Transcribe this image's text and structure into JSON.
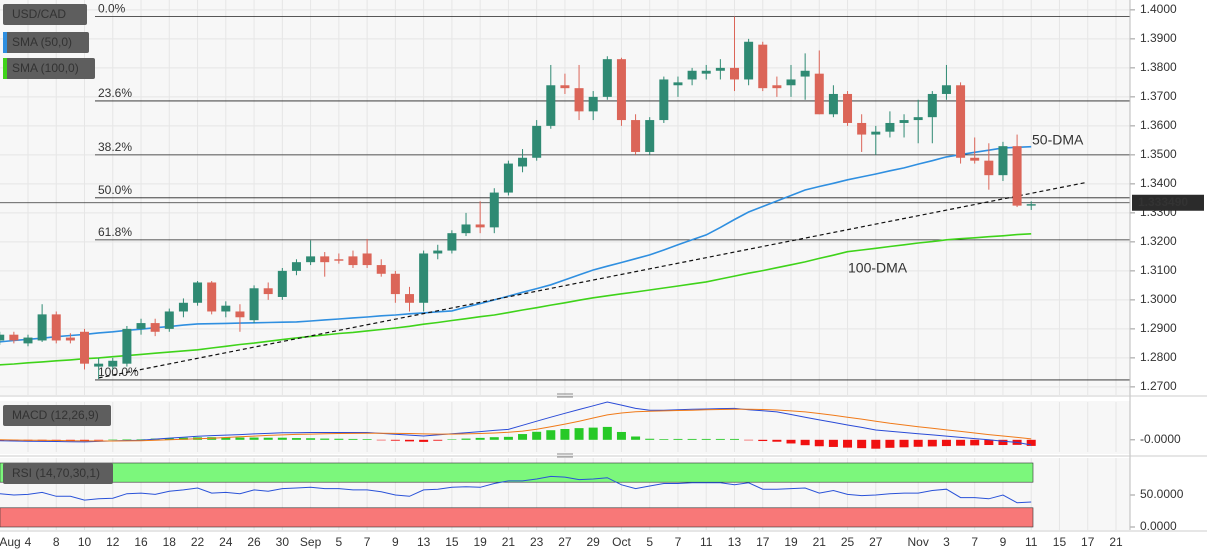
{
  "chart_data": [
    {
      "type": "candlestick",
      "title": "USD/CAD",
      "up_color": "#2f8a73",
      "down_color": "#db6558",
      "x_labels": [
        "Aug",
        "4",
        "8",
        "10",
        "12",
        "16",
        "18",
        "22",
        "24",
        "26",
        "30",
        "Sep",
        "5",
        "7",
        "9",
        "13",
        "15",
        "19",
        "21",
        "23",
        "27",
        "29",
        "Oct",
        "5",
        "7",
        "11",
        "13",
        "17",
        "19",
        "21",
        "25",
        "27",
        "Nov",
        "3",
        "7",
        "9",
        "11",
        "15",
        "17",
        "21"
      ],
      "candles": [
        [
          1.286,
          1.289,
          1.2845,
          1.288
        ],
        [
          1.288,
          1.289,
          1.285,
          1.286
        ],
        [
          1.285,
          1.288,
          1.284,
          1.287
        ],
        [
          1.286,
          1.2985,
          1.2855,
          1.295
        ],
        [
          1.295,
          1.296,
          1.285,
          1.286
        ],
        [
          1.287,
          1.2885,
          1.285,
          1.286
        ],
        [
          1.289,
          1.29,
          1.276,
          1.278
        ],
        [
          1.277,
          1.28,
          1.2727,
          1.278
        ],
        [
          1.277,
          1.28,
          1.276,
          1.279
        ],
        [
          1.278,
          1.291,
          1.277,
          1.29
        ],
        [
          1.29,
          1.2935,
          1.288,
          1.292
        ],
        [
          1.292,
          1.2935,
          1.2875,
          1.289
        ],
        [
          1.29,
          1.297,
          1.289,
          1.296
        ],
        [
          1.296,
          1.3005,
          1.294,
          1.299
        ],
        [
          1.299,
          1.3065,
          1.298,
          1.306
        ],
        [
          1.306,
          1.3065,
          1.295,
          1.296
        ],
        [
          1.296,
          1.2995,
          1.294,
          1.298
        ],
        [
          1.296,
          1.2985,
          1.289,
          1.294
        ],
        [
          1.293,
          1.305,
          1.292,
          1.304
        ],
        [
          1.304,
          1.306,
          1.3,
          1.302
        ],
        [
          1.301,
          1.311,
          1.3,
          1.31
        ],
        [
          1.31,
          1.314,
          1.3085,
          1.313
        ],
        [
          1.313,
          1.3205,
          1.312,
          1.315
        ],
        [
          1.315,
          1.3165,
          1.308,
          1.313
        ],
        [
          1.314,
          1.316,
          1.3125,
          1.3135
        ],
        [
          1.315,
          1.317,
          1.311,
          1.312
        ],
        [
          1.316,
          1.321,
          1.311,
          1.312
        ],
        [
          1.312,
          1.314,
          1.308,
          1.309
        ],
        [
          1.309,
          1.31,
          1.299,
          1.302
        ],
        [
          1.302,
          1.3045,
          1.296,
          1.299
        ],
        [
          1.299,
          1.317,
          1.296,
          1.316
        ],
        [
          1.316,
          1.319,
          1.314,
          1.317
        ],
        [
          1.317,
          1.324,
          1.316,
          1.323
        ],
        [
          1.323,
          1.33,
          1.322,
          1.326
        ],
        [
          1.326,
          1.334,
          1.323,
          1.325
        ],
        [
          1.325,
          1.3385,
          1.323,
          1.337
        ],
        [
          1.337,
          1.348,
          1.336,
          1.347
        ],
        [
          1.346,
          1.352,
          1.344,
          1.349
        ],
        [
          1.349,
          1.362,
          1.348,
          1.36
        ],
        [
          1.36,
          1.381,
          1.359,
          1.374
        ],
        [
          1.374,
          1.378,
          1.371,
          1.373
        ],
        [
          1.373,
          1.381,
          1.362,
          1.365
        ],
        [
          1.365,
          1.372,
          1.362,
          1.37
        ],
        [
          1.37,
          1.384,
          1.369,
          1.383
        ],
        [
          1.383,
          1.3835,
          1.36,
          1.362
        ],
        [
          1.362,
          1.364,
          1.35,
          1.351
        ],
        [
          1.351,
          1.363,
          1.35,
          1.362
        ],
        [
          1.362,
          1.377,
          1.361,
          1.376
        ],
        [
          1.374,
          1.377,
          1.37,
          1.375
        ],
        [
          1.376,
          1.38,
          1.374,
          1.379
        ],
        [
          1.378,
          1.381,
          1.376,
          1.379
        ],
        [
          1.379,
          1.383,
          1.376,
          1.38
        ],
        [
          1.38,
          1.3977,
          1.372,
          1.376
        ],
        [
          1.376,
          1.39,
          1.374,
          1.389
        ],
        [
          1.388,
          1.389,
          1.372,
          1.373
        ],
        [
          1.374,
          1.377,
          1.37,
          1.373
        ],
        [
          1.374,
          1.381,
          1.37,
          1.376
        ],
        [
          1.377,
          1.385,
          1.369,
          1.379
        ],
        [
          1.378,
          1.386,
          1.364,
          1.364
        ],
        [
          1.364,
          1.374,
          1.363,
          1.371
        ],
        [
          1.371,
          1.372,
          1.36,
          1.361
        ],
        [
          1.361,
          1.364,
          1.351,
          1.357
        ],
        [
          1.357,
          1.36,
          1.35,
          1.358
        ],
        [
          1.358,
          1.365,
          1.356,
          1.361
        ],
        [
          1.361,
          1.364,
          1.356,
          1.362
        ],
        [
          1.362,
          1.369,
          1.354,
          1.363
        ],
        [
          1.363,
          1.372,
          1.354,
          1.371
        ],
        [
          1.371,
          1.381,
          1.369,
          1.374
        ],
        [
          1.374,
          1.375,
          1.347,
          1.349
        ],
        [
          1.349,
          1.356,
          1.347,
          1.348
        ],
        [
          1.348,
          1.354,
          1.338,
          1.343
        ],
        [
          1.343,
          1.3545,
          1.341,
          1.353
        ],
        [
          1.353,
          1.357,
          1.332,
          1.3325
        ],
        [
          1.3325,
          1.334,
          1.331,
          1.333
        ]
      ],
      "series": [
        {
          "name": "SMA (50,0)",
          "annotation": "50-DMA",
          "color": "#2f8fe0",
          "values": [
            1.2855,
            1.286,
            1.2864,
            1.2868,
            1.2873,
            1.2877,
            1.2881,
            1.2886,
            1.289,
            1.2895,
            1.2899,
            1.2904,
            1.2908,
            1.2913,
            1.2917,
            1.2918,
            1.2919,
            1.292,
            1.2921,
            1.2922,
            1.2923,
            1.2924,
            1.2927,
            1.2931,
            1.2934,
            1.2938,
            1.2941,
            1.2945,
            1.2948,
            1.2952,
            1.2955,
            1.2959,
            1.2962,
            1.2975,
            1.2987,
            1.3,
            1.3013,
            1.3026,
            1.3039,
            1.3052,
            1.3069,
            1.3086,
            1.3103,
            1.3116,
            1.3129,
            1.3142,
            1.3155,
            1.3172,
            1.319,
            1.3207,
            1.3224,
            1.325,
            1.3277,
            1.3303,
            1.3322,
            1.3341,
            1.336,
            1.3379,
            1.3391,
            1.3402,
            1.3414,
            1.3424,
            1.3434,
            1.3445,
            1.3455,
            1.3468,
            1.348,
            1.3493,
            1.3501,
            1.3509,
            1.3516,
            1.3524,
            1.3526,
            1.3528
          ]
        },
        {
          "name": "SMA (100,0)",
          "annotation": "100-DMA",
          "color": "#3fd31a",
          "values": [
            1.2776,
            1.2779,
            1.2783,
            1.2786,
            1.279,
            1.2793,
            1.2797,
            1.28,
            1.2804,
            1.2808,
            1.2812,
            1.2816,
            1.282,
            1.2824,
            1.2828,
            1.2834,
            1.284,
            1.2846,
            1.2851,
            1.2857,
            1.2863,
            1.2869,
            1.2874,
            1.2879,
            1.2884,
            1.2888,
            1.2893,
            1.2898,
            1.2903,
            1.2909,
            1.2916,
            1.2922,
            1.2929,
            1.2935,
            1.2942,
            1.2948,
            1.2956,
            1.2965,
            1.2973,
            1.2982,
            1.299,
            1.2999,
            1.3007,
            1.3014,
            1.3021,
            1.3027,
            1.3034,
            1.3041,
            1.3048,
            1.3055,
            1.3062,
            1.3072,
            1.3082,
            1.3092,
            1.3101,
            1.3111,
            1.3121,
            1.3131,
            1.3143,
            1.3154,
            1.3166,
            1.3172,
            1.3178,
            1.3184,
            1.319,
            1.3196,
            1.3201,
            1.3207,
            1.3211,
            1.3214,
            1.3218,
            1.3221,
            1.3225,
            1.3228
          ]
        }
      ],
      "fib_levels": [
        {
          "label": "0.0%",
          "value": 1.3977
        },
        {
          "label": "23.6%",
          "value": 1.3686
        },
        {
          "label": "38.2%",
          "value": 1.35
        },
        {
          "label": "50.0%",
          "value": 1.3352
        },
        {
          "label": "61.8%",
          "value": 1.3207
        },
        {
          "label": "100.0%",
          "value": 1.2724
        }
      ],
      "trendline": {
        "values": [
          1.2731,
          1.3404
        ],
        "color": "#111111",
        "dashed": true
      },
      "last_price": {
        "value": 1.33349,
        "label": "1.333490"
      },
      "ylim": [
        1.2672,
        1.4034
      ],
      "yticks": [
        {
          "value": 1.4,
          "label": "1.4000"
        },
        {
          "value": 1.39,
          "label": "1.3900"
        },
        {
          "value": 1.38,
          "label": "1.3800"
        },
        {
          "value": 1.37,
          "label": "1.3700"
        },
        {
          "value": 1.36,
          "label": "1.3600"
        },
        {
          "value": 1.35,
          "label": "1.3500"
        },
        {
          "value": 1.34,
          "label": "1.3400"
        },
        {
          "value": 1.33,
          "label": "1.3300"
        },
        {
          "value": 1.32,
          "label": "1.3200"
        },
        {
          "value": 1.31,
          "label": "1.3100"
        },
        {
          "value": 1.3,
          "label": "1.3000"
        },
        {
          "value": 1.29,
          "label": "1.2900"
        },
        {
          "value": 1.28,
          "label": "1.2800"
        },
        {
          "value": 1.27,
          "label": "1.2700"
        }
      ],
      "grid": true
    },
    {
      "type": "macd",
      "title": "MACD (12,26,9)",
      "series": [
        {
          "color": "#2a4bd7",
          "values": [
            -0.0005,
            -0.0007,
            -0.0008,
            -0.0009,
            -0.001,
            -0.0011,
            -0.0012,
            -0.0009,
            -0.0006,
            -0.0004,
            -0.0002,
            0.0004,
            0.001,
            0.0015,
            0.002,
            0.0024,
            0.0027,
            0.003,
            0.0034,
            0.0037,
            0.004,
            0.0041,
            0.0042,
            0.0042,
            0.0042,
            0.0042,
            0.0042,
            0.0037,
            0.0032,
            0.0027,
            0.0022,
            0.0028,
            0.0035,
            0.0041,
            0.0047,
            0.0054,
            0.006,
            0.0083,
            0.0107,
            0.013,
            0.0152,
            0.0174,
            0.0195,
            0.0217,
            0.0199,
            0.018,
            0.017,
            0.017,
            0.0173,
            0.0175,
            0.0177,
            0.0179,
            0.018,
            0.0173,
            0.0167,
            0.016,
            0.0145,
            0.0129,
            0.0114,
            0.01,
            0.0085,
            0.0071,
            0.0056,
            0.0049,
            0.0042,
            0.0035,
            0.0028,
            0.0021,
            0.0014,
            0.0007,
            0,
            -0.0008,
            -0.0015,
            -0.003
          ]
        },
        {
          "color": "#f07a19",
          "values": [
            0,
            -0.0001,
            -0.0002,
            -0.0003,
            -0.0004,
            -0.0005,
            -0.0006,
            -0.0007,
            -0.0007,
            -0.0006,
            -0.0005,
            -0.0003,
            0,
            0.0003,
            0.0006,
            0.0009,
            0.0013,
            0.0017,
            0.0021,
            0.0025,
            0.0028,
            0.0031,
            0.0033,
            0.0035,
            0.0036,
            0.0037,
            0.0038,
            0.0038,
            0.0037,
            0.0036,
            0.0034,
            0.0033,
            0.0033,
            0.0034,
            0.0036,
            0.0039,
            0.0043,
            0.005,
            0.0061,
            0.0075,
            0.009,
            0.0107,
            0.0125,
            0.0143,
            0.0154,
            0.0161,
            0.0164,
            0.0166,
            0.0168,
            0.017,
            0.0172,
            0.0174,
            0.0175,
            0.0175,
            0.0174,
            0.0171,
            0.0166,
            0.016,
            0.0151,
            0.0141,
            0.013,
            0.0119,
            0.0107,
            0.0095,
            0.0085,
            0.0075,
            0.0066,
            0.0057,
            0.0048,
            0.0039,
            0.003,
            0.0022,
            0.0014,
            0.0005
          ]
        }
      ],
      "histogram": {
        "up_color": "#27c927",
        "down_color": "#f01010",
        "values": [
          -0.0005,
          -0.0006,
          -0.0006,
          -0.0006,
          -0.0006,
          -0.0006,
          -0.0006,
          -0.0002,
          0.0001,
          0.0002,
          0.0003,
          0.0007,
          0.001,
          0.0012,
          0.0014,
          0.0015,
          0.0014,
          0.0013,
          0.0013,
          0.0012,
          0.0012,
          0.001,
          0.0009,
          0.0007,
          0.0006,
          0.0005,
          0.0004,
          -0.0001,
          -0.0005,
          -0.0009,
          -0.0012,
          -0.0005,
          0.0002,
          0.0007,
          0.0011,
          0.0015,
          0.0017,
          0.0033,
          0.0046,
          0.0055,
          0.0062,
          0.0067,
          0.007,
          0.0074,
          0.0045,
          0.0019,
          0.0006,
          0.0004,
          0.0005,
          0.0005,
          0.0005,
          0.0005,
          0.0005,
          -0.0002,
          -0.0007,
          -0.0011,
          -0.0021,
          -0.0031,
          -0.0037,
          -0.0041,
          -0.0045,
          -0.0048,
          -0.0051,
          -0.0046,
          -0.0043,
          -0.004,
          -0.0038,
          -0.0036,
          -0.0034,
          -0.0032,
          -0.003,
          -0.003,
          -0.0029,
          -0.0035
        ]
      },
      "ylim": [
        -0.007,
        0.0217
      ],
      "yticks": [
        {
          "value": 0,
          "label": "-0.0000"
        }
      ]
    },
    {
      "type": "rsi",
      "title": "RSI (14,70,30,1)",
      "series": [
        {
          "color": "#2a52d8",
          "values": [
            52,
            50,
            51,
            54,
            48,
            48,
            42,
            44,
            45,
            52,
            53,
            51,
            56,
            58,
            61,
            53,
            54,
            52,
            58,
            56,
            60,
            61,
            62,
            60,
            60,
            58,
            58,
            55,
            50,
            48,
            58,
            59,
            62,
            63,
            62,
            68,
            72,
            72,
            75,
            79,
            78,
            74,
            75,
            77,
            66,
            60,
            64,
            68,
            68,
            69,
            69,
            69,
            66,
            69,
            59,
            59,
            60,
            61,
            53,
            57,
            51,
            49,
            50,
            52,
            53,
            53,
            57,
            59,
            46,
            46,
            44,
            50,
            38,
            39
          ]
        }
      ],
      "bands": [
        {
          "from": 70,
          "to": 100,
          "color": "#7cf77c"
        },
        {
          "from": 0,
          "to": 30,
          "color": "#f87878"
        }
      ],
      "ylim": [
        -4.7,
        107.8
      ],
      "yticks": [
        {
          "value": 50,
          "label": "50.0000"
        },
        {
          "value": 0,
          "label": "0.0000"
        }
      ]
    }
  ]
}
